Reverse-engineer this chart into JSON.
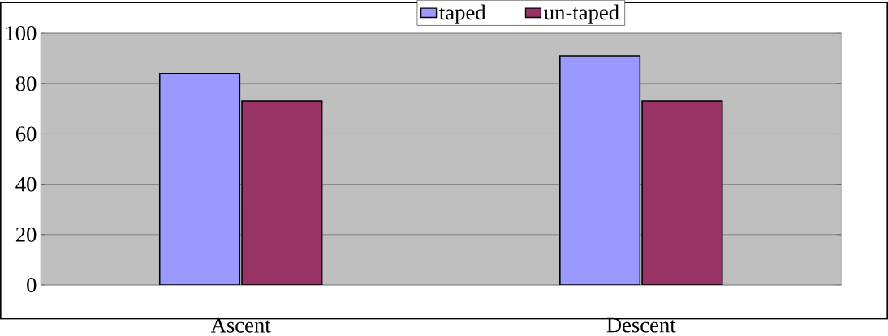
{
  "chart_data": {
    "type": "bar",
    "categories": [
      "Ascent",
      "Descent"
    ],
    "series": [
      {
        "name": "taped",
        "color": "#9999ff",
        "values": [
          84,
          91
        ]
      },
      {
        "name": "un-taped",
        "color": "#993366",
        "values": [
          73,
          73
        ]
      }
    ],
    "ylim": [
      0,
      100
    ],
    "yticks": [
      0,
      20,
      40,
      60,
      80,
      100
    ],
    "grid": "y",
    "legend": "top"
  }
}
